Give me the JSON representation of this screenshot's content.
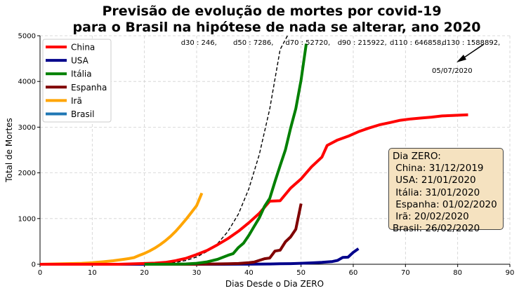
{
  "chart_data": {
    "type": "line",
    "title_lines": [
      "Previsão de evolução de mortes por covid-19",
      "para o Brasil na hipótese de nada se alterar, ano 2020"
    ],
    "xlabel": "Dias Desde o Dia ZERO",
    "ylabel": "Total de Mortes",
    "xlim": [
      0,
      90
    ],
    "ylim": [
      0,
      5000
    ],
    "x_ticks": [
      0,
      10,
      20,
      30,
      40,
      50,
      60,
      70,
      80,
      90
    ],
    "y_ticks": [
      0,
      1000,
      2000,
      3000,
      4000,
      5000
    ],
    "grid": true,
    "legend_position": "top-left",
    "series": [
      {
        "name": "China",
        "color": "#ff0000",
        "x": [
          0,
          10,
          15,
          20,
          22,
          24,
          26,
          28,
          30,
          32,
          34,
          36,
          38,
          40,
          42,
          44,
          46,
          48,
          50,
          52,
          54,
          55,
          57,
          59,
          61,
          63,
          65,
          67,
          69,
          71,
          73,
          75,
          77,
          79,
          82
        ],
        "y": [
          0,
          0,
          0,
          17,
          25,
          41,
          80,
          132,
          213,
          304,
          426,
          563,
          722,
          908,
          1113,
          1380,
          1390,
          1665,
          1868,
          2130,
          2345,
          2600,
          2720,
          2800,
          2900,
          2980,
          3050,
          3100,
          3150,
          3180,
          3200,
          3220,
          3245,
          3255,
          3270
        ]
      },
      {
        "name": "USA",
        "color": "#00008b",
        "x": [
          0,
          20,
          30,
          35,
          38,
          40,
          42,
          44,
          46,
          48,
          50,
          52,
          54,
          56,
          57,
          58,
          59,
          60,
          61
        ],
        "y": [
          0,
          0,
          0,
          0,
          1,
          2,
          3,
          6,
          10,
          14,
          22,
          30,
          41,
          60,
          85,
          150,
          155,
          260,
          340
        ]
      },
      {
        "name": "Itália",
        "color": "#008000",
        "x": [
          20,
          24,
          26,
          28,
          30,
          32,
          34,
          36,
          37,
          38,
          39,
          40,
          41,
          42,
          43,
          44,
          45,
          46,
          47,
          48,
          49,
          50,
          51
        ],
        "y": [
          0,
          1,
          2,
          7,
          21,
          52,
          107,
          197,
          233,
          366,
          463,
          631,
          827,
          1016,
          1266,
          1441,
          1809,
          2158,
          2503,
          2978,
          3405,
          4032,
          4825
        ]
      },
      {
        "name": "Espanha",
        "color": "#800000",
        "x": [
          20,
          30,
          36,
          38,
          40,
          41,
          42,
          43,
          44,
          45,
          46,
          47,
          48,
          49,
          50
        ],
        "y": [
          0,
          0,
          10,
          17,
          35,
          47,
          84,
          121,
          136,
          288,
          309,
          491,
          598,
          767,
          1326
        ]
      },
      {
        "name": "Irã",
        "color": "#ffa500",
        "x": [
          0,
          8,
          10,
          12,
          14,
          16,
          17,
          18,
          19,
          20,
          21,
          22,
          23,
          24,
          25,
          26,
          27,
          28,
          29,
          30,
          31
        ],
        "y": [
          0,
          22,
          34,
          54,
          77,
          107,
          124,
          145,
          194,
          237,
          291,
          354,
          429,
          514,
          611,
          724,
          853,
          988,
          1135,
          1284,
          1556
        ]
      },
      {
        "name": "Brasil",
        "color": "#1f77b4",
        "x": [
          0,
          5,
          10,
          15,
          20,
          22
        ],
        "y": [
          0,
          0,
          0,
          0,
          0,
          0
        ]
      }
    ],
    "projection": {
      "color": "#000000",
      "style": "dashed",
      "x": [
        22,
        24,
        26,
        28,
        30,
        32,
        34,
        36,
        38,
        40,
        42,
        44,
        46,
        47.4
      ],
      "y": [
        0,
        12,
        40,
        85,
        160,
        280,
        450,
        720,
        1100,
        1650,
        2400,
        3400,
        4700,
        5000
      ]
    },
    "day_annotations": [
      {
        "label": "d30 : 246,",
        "x": 27
      },
      {
        "label": "d50 : 7286,",
        "x": 37
      },
      {
        "label": "d70 : 52720,",
        "x": 47
      },
      {
        "label": "d90 : 215922,",
        "x": 57
      },
      {
        "label": "d110 : 646858,",
        "x": 67
      },
      {
        "label": "d130 : 1588892,",
        "x": 77
      }
    ],
    "arrow_label": "05/07/2020",
    "info_box_lines": [
      "Dia ZERO:",
      " China: 31/12/2019",
      " USA: 21/01/2020",
      " Itália: 31/01/2020",
      " Espanha: 01/02/2020",
      " Irã: 20/02/2020",
      "Brasil: 26/02/2020"
    ]
  }
}
